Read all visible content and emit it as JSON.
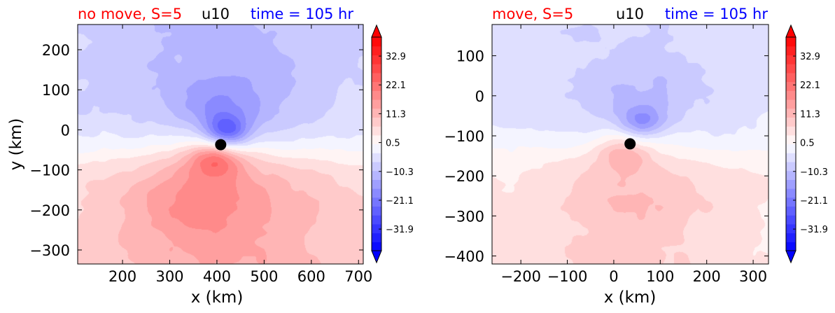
{
  "chart_data": [
    {
      "type": "heatmap",
      "variable": "u10",
      "title_left": "no move, S=5",
      "title_center": "u10",
      "title_right": "time = 105 hr",
      "xlabel": "x (km)",
      "ylabel": "y (km)",
      "xlim": [
        105,
        710
      ],
      "ylim": [
        -335,
        263
      ],
      "xticks": [
        200,
        300,
        400,
        500,
        600,
        700
      ],
      "yticks": [
        -300,
        -200,
        -100,
        0,
        100,
        200
      ],
      "center_marker": {
        "x": 408,
        "y": -37
      },
      "features": {
        "neg_max": {
          "x": 420,
          "y": -5,
          "value": -24
        },
        "pos_max": {
          "x": 398,
          "y": -70,
          "value": 20
        },
        "lobe_x_sign": 1
      },
      "colorbar": {
        "ticks": [
          32.9,
          22.1,
          11.3,
          0.5,
          -10.3,
          -21.1,
          -31.9
        ],
        "tick_labels": [
          "32.9",
          "22.1",
          "11.3",
          "0.5",
          "−10.3",
          "−21.1",
          "−31.9"
        ],
        "range": [
          -40,
          40
        ],
        "extend": "both"
      }
    },
    {
      "type": "heatmap",
      "variable": "u10",
      "title_left": "move, S=5",
      "title_center": "u10",
      "title_right": "time = 105 hr",
      "xlabel": "x (km)",
      "ylabel": "",
      "xlim": [
        -262,
        333
      ],
      "ylim": [
        -420,
        178
      ],
      "xticks": [
        -200,
        -100,
        0,
        100,
        200,
        300
      ],
      "yticks": [
        -400,
        -300,
        -200,
        -100,
        0,
        100
      ],
      "center_marker": {
        "x": 35,
        "y": -120
      },
      "features": {
        "neg_max": {
          "x": 60,
          "y": -65,
          "value": -14
        },
        "pos_max": {
          "x": 20,
          "y": -140,
          "value": 12
        },
        "lobe_x_sign": -1
      },
      "colorbar": {
        "ticks": [
          32.9,
          22.1,
          11.3,
          0.5,
          -10.3,
          -21.1,
          -31.9
        ],
        "tick_labels": [
          "32.9",
          "22.1",
          "11.3",
          "0.5",
          "−10.3",
          "−21.1",
          "−31.9"
        ],
        "range": [
          -40,
          40
        ],
        "extend": "both"
      }
    }
  ],
  "colors": {
    "title_left": "#ff0000",
    "title_center": "#000000",
    "title_right": "#0000ff",
    "colormap": "bwr",
    "marker": "#000000"
  }
}
